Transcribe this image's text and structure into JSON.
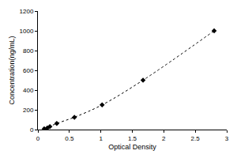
{
  "chart_data": {
    "type": "scatter",
    "x_label": "Optical Density",
    "y_label": "Concentration(ng/mL)",
    "x": [
      0.1,
      0.15,
      0.19,
      0.3,
      0.58,
      1.02,
      1.67,
      2.8
    ],
    "values": [
      8,
      16,
      31,
      62,
      125,
      250,
      500,
      1000
    ],
    "color": "#000000",
    "marker": "diamond",
    "line_style": "dot",
    "xlim": [
      0,
      3
    ],
    "xticks": [
      0,
      0.5,
      1,
      1.5,
      2,
      2.5,
      3
    ],
    "ylim": [
      0,
      1200
    ],
    "yticks": [
      0,
      200,
      400,
      600,
      800,
      1000,
      1200
    ],
    "grid": false
  }
}
